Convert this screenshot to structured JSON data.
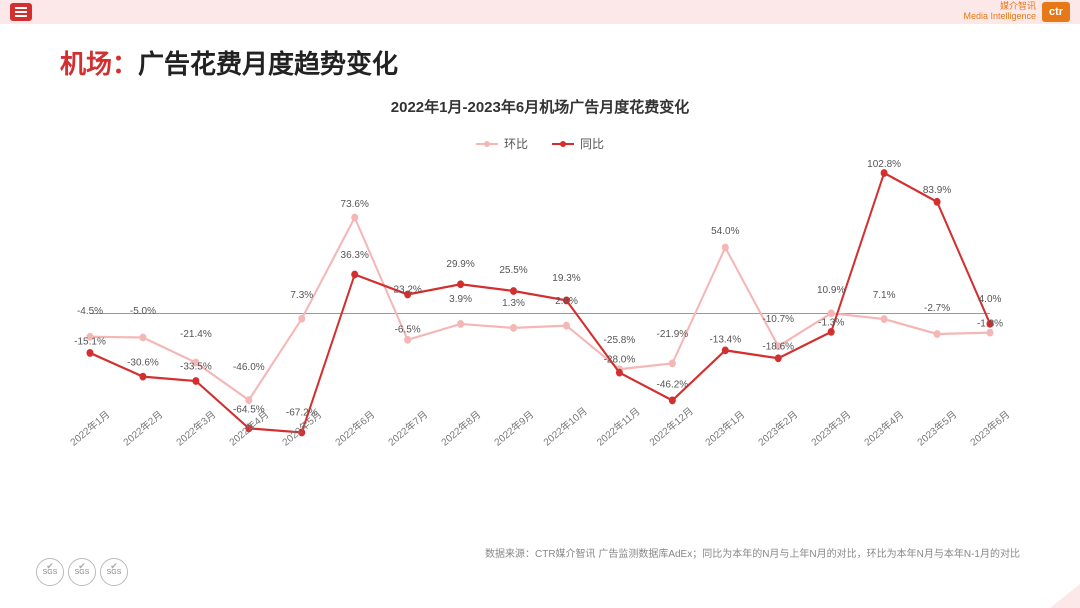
{
  "header": {
    "brand_cn": "媒介智讯",
    "brand_en": "Media Intelligence",
    "brand_logo": "ctr"
  },
  "title": {
    "highlight": "机场：",
    "rest": "广告花费月度趋势变化"
  },
  "subtitle": "2022年1月-2023年6月机场广告月度花费变化",
  "legend": {
    "mom": "环比",
    "yoy": "同比"
  },
  "chart": {
    "type": "line",
    "y_min": -80,
    "y_max": 110,
    "zero": 0,
    "categories": [
      "2022年1月",
      "2022年2月",
      "2022年3月",
      "2022年4月",
      "2022年5月",
      "2022年6月",
      "2022年7月",
      "2022年8月",
      "2022年9月",
      "2022年10月",
      "2022年11月",
      "2022年12月",
      "2023年1月",
      "2023年2月",
      "2023年3月",
      "2023年4月",
      "2023年5月",
      "2023年6月"
    ],
    "series": [
      {
        "name": "环比",
        "color": "#f5b6b6",
        "values": [
          -4.5,
          -5.0,
          -21.4,
          -46.0,
          7.3,
          73.6,
          -6.5,
          3.9,
          1.3,
          2.8,
          -25.8,
          -21.9,
          54.0,
          -10.7,
          10.9,
          7.1,
          -2.7,
          -1.8
        ],
        "labels": [
          "-4.5%",
          "-5.0%",
          "-21.4%",
          "-46.0%",
          "7.3%",
          "73.6%",
          "-6.5%",
          "3.9%",
          "1.3%",
          "2.8%",
          "-25.8%",
          "-21.9%",
          "54.0%",
          "-10.7%",
          "10.9%",
          "7.1%",
          "-2.7%",
          "-1.8%"
        ],
        "pos": [
          "above",
          "above",
          "above",
          "above",
          "above",
          "above",
          "below",
          "above",
          "above",
          "above",
          "above",
          "above",
          "above",
          "above",
          "above",
          "above",
          "above",
          "below"
        ]
      },
      {
        "name": "同比",
        "color": "#d32f2f",
        "values": [
          -15.1,
          -30.6,
          -33.5,
          -64.5,
          -67.2,
          36.3,
          23.2,
          29.9,
          25.5,
          19.3,
          -28.0,
          -46.2,
          -13.4,
          -18.6,
          -1.3,
          102.8,
          83.9,
          4.0
        ],
        "labels": [
          "-15.1%",
          "-30.6%",
          "-33.5%",
          "-64.5%",
          "-67.2%",
          "36.3%",
          "23.2%",
          "29.9%",
          "25.5%",
          "19.3%",
          "-28.0%",
          "-46.2%",
          "-13.4%",
          "-18.6%",
          "-1.3%",
          "102.8%",
          "83.9%",
          "4.0%"
        ],
        "pos": [
          "below",
          "below",
          "below",
          "below",
          "below",
          "above",
          "below",
          "above",
          "above",
          "above",
          "below",
          "below",
          "below",
          "below",
          "below",
          "above",
          "above",
          "above"
        ]
      }
    ],
    "line_width": 2,
    "marker_radius": 3.5,
    "background_color": "#ffffff"
  },
  "footnote": "数据来源：CTR媒介智讯 广告监测数据库AdEx；同比为本年的N月与上年N月的对比，环比为本年N月与本年N-1月的对比",
  "badge_text": "SGS"
}
